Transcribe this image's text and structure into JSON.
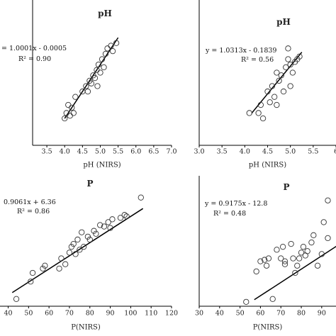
{
  "chart_data": [
    {
      "type": "scatter",
      "title": "pH",
      "xlabel": "pH (NIRS)",
      "xticks": [
        "3.5",
        "4.0",
        "4.5",
        "5.0",
        "5.5",
        "6.0",
        "6.5",
        "7.0"
      ],
      "equation": "= 1.0001x - 0.0005",
      "r2": "R² = 0.90",
      "xlim": [
        3.1,
        7.0
      ],
      "ylim": [
        3.5,
        6.2
      ],
      "fit": {
        "slope": 1.0001,
        "intercept": -0.0005,
        "x_range": [
          4.0,
          5.5
        ]
      },
      "points": [
        [
          4.0,
          4.0
        ],
        [
          4.05,
          4.1
        ],
        [
          4.1,
          4.25
        ],
        [
          4.15,
          4.05
        ],
        [
          4.2,
          4.2
        ],
        [
          4.25,
          4.1
        ],
        [
          4.3,
          4.4
        ],
        [
          4.5,
          4.5
        ],
        [
          4.6,
          4.6
        ],
        [
          4.65,
          4.5
        ],
        [
          4.7,
          4.7
        ],
        [
          4.75,
          4.65
        ],
        [
          4.8,
          4.8
        ],
        [
          4.85,
          4.75
        ],
        [
          4.9,
          4.9
        ],
        [
          4.92,
          4.6
        ],
        [
          4.95,
          5.0
        ],
        [
          5.0,
          4.85
        ],
        [
          5.05,
          5.1
        ],
        [
          5.1,
          4.95
        ],
        [
          5.15,
          5.2
        ],
        [
          5.2,
          5.3
        ],
        [
          5.3,
          5.35
        ],
        [
          5.35,
          5.25
        ],
        [
          5.45,
          5.4
        ]
      ]
    },
    {
      "type": "scatter",
      "title": "pH",
      "xlabel": "pH (NIRS)",
      "xticks": [
        "3.0",
        "3.5",
        "4.0",
        "4.5",
        "5.0",
        "5.5",
        "6"
      ],
      "equation": "y = 1.0313x - 0.1839",
      "r2": "R² = 0.56",
      "xlim": [
        3.0,
        6.0
      ],
      "ylim": [
        3.5,
        6.2
      ],
      "fit": {
        "slope": 1.0313,
        "intercept": -0.1839,
        "x_range": [
          4.15,
          5.25
        ]
      },
      "points": [
        [
          4.1,
          4.1
        ],
        [
          4.3,
          4.1
        ],
        [
          4.35,
          4.25
        ],
        [
          4.4,
          4.0
        ],
        [
          4.5,
          4.5
        ],
        [
          4.55,
          4.3
        ],
        [
          4.6,
          4.6
        ],
        [
          4.65,
          4.4
        ],
        [
          4.7,
          4.85
        ],
        [
          4.7,
          4.25
        ],
        [
          4.75,
          4.7
        ],
        [
          4.8,
          4.8
        ],
        [
          4.85,
          4.5
        ],
        [
          4.9,
          4.95
        ],
        [
          4.95,
          5.1
        ],
        [
          4.95,
          5.3
        ],
        [
          5.0,
          4.6
        ],
        [
          5.0,
          5.0
        ],
        [
          5.05,
          4.85
        ],
        [
          5.1,
          5.05
        ],
        [
          5.15,
          5.1
        ],
        [
          5.2,
          5.15
        ]
      ]
    },
    {
      "type": "scatter",
      "title": "P",
      "xlabel": "P(NIRS)",
      "xticks": [
        "40",
        "50",
        "60",
        "70",
        "80",
        "90",
        "100",
        "110",
        "120"
      ],
      "equation": "0.9061x + 6.36",
      "r2": "R² = 0.86",
      "xlim": [
        36,
        120
      ],
      "ylim": [
        35,
        125
      ],
      "fit": {
        "slope": 0.9061,
        "intercept": 6.36,
        "x_range": [
          42,
          106
        ]
      },
      "points": [
        [
          44,
          40
        ],
        [
          51,
          52
        ],
        [
          52,
          58
        ],
        [
          57,
          61
        ],
        [
          58,
          63
        ],
        [
          65,
          61
        ],
        [
          66,
          68
        ],
        [
          68,
          64
        ],
        [
          70,
          72
        ],
        [
          71,
          76
        ],
        [
          72,
          78
        ],
        [
          73,
          71
        ],
        [
          74,
          81
        ],
        [
          75,
          74
        ],
        [
          76,
          86
        ],
        [
          77,
          76
        ],
        [
          79,
          83
        ],
        [
          80,
          81
        ],
        [
          82,
          87
        ],
        [
          83,
          85
        ],
        [
          85,
          91
        ],
        [
          87,
          90
        ],
        [
          89,
          93
        ],
        [
          90,
          89
        ],
        [
          91,
          95
        ],
        [
          95,
          96
        ],
        [
          97,
          98
        ],
        [
          98,
          97
        ],
        [
          105,
          110
        ]
      ]
    },
    {
      "type": "scatter",
      "title": "P",
      "xlabel": "P(NIRS)",
      "xticks": [
        "30",
        "40",
        "50",
        "60",
        "70",
        "80",
        "90"
      ],
      "equation": "y = 0.9175x - 12.8",
      "r2": "R² = 0.48",
      "xlim": [
        30,
        97
      ],
      "ylim": [
        35,
        125
      ],
      "fit": {
        "slope": 0.9175,
        "intercept": -12.8,
        "x_range": [
          57,
          100
        ]
      },
      "points": [
        [
          53,
          38
        ],
        [
          58,
          59
        ],
        [
          60,
          66
        ],
        [
          62,
          67
        ],
        [
          63,
          63
        ],
        [
          64,
          68
        ],
        [
          66,
          40
        ],
        [
          68,
          74
        ],
        [
          70,
          68
        ],
        [
          71,
          76
        ],
        [
          72,
          66
        ],
        [
          72,
          64
        ],
        [
          75,
          78
        ],
        [
          76,
          68
        ],
        [
          77,
          58
        ],
        [
          78,
          63
        ],
        [
          79,
          68
        ],
        [
          80,
          72
        ],
        [
          81,
          76
        ],
        [
          82,
          70
        ],
        [
          83,
          73
        ],
        [
          85,
          79
        ],
        [
          86,
          84
        ],
        [
          88,
          63
        ],
        [
          90,
          71
        ],
        [
          91,
          93
        ],
        [
          93,
          82
        ],
        [
          93,
          108
        ]
      ]
    }
  ]
}
